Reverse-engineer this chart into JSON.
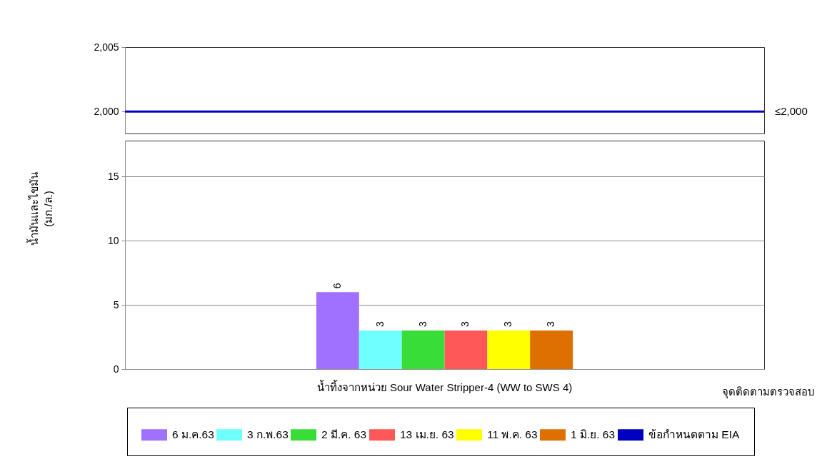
{
  "chart_data": [
    {
      "type": "bar",
      "categories": [
        null
      ],
      "ylim": [
        1998.3,
        2005
      ],
      "yticks": [
        {
          "value": 2000,
          "label": "2,000"
        },
        {
          "value": 2005,
          "label": "2,005"
        }
      ],
      "tick_labels": "y",
      "ref_lines": [
        {
          "axis": "y",
          "value": 2000,
          "label": "ข้อกำหนดตาม EIA",
          "color": "#0000c0"
        }
      ],
      "annotations": [
        "≤2,000"
      ]
    },
    {
      "type": "bar",
      "categories": [
        "น้ำทิ้งจากหน่วย Sour Water Stripper-4 (WW to SWS 4)"
      ],
      "series": [
        {
          "name": "6 ม.ค.63",
          "color": "#a070ff",
          "values": [
            6
          ]
        },
        {
          "name": "3 ก.พ.63",
          "color": "#70ffff",
          "values": [
            3
          ]
        },
        {
          "name": "2 มี.ค. 63",
          "color": "#38dd38",
          "values": [
            3
          ]
        },
        {
          "name": "13 เม.ย. 63",
          "color": "#ff5858",
          "values": [
            3
          ]
        },
        {
          "name": "11 พ.ค. 63",
          "color": "#ffff00",
          "values": [
            3
          ]
        },
        {
          "name": "1 มิ.ย. 63",
          "color": "#dd7000",
          "values": [
            3
          ]
        }
      ],
      "ylim": [
        0,
        17.8
      ],
      "yticks": [
        0,
        5,
        10,
        15
      ],
      "grid": "y",
      "xlabel": "จุดติดตามตรวจสอบ",
      "ylabel": "น้ำมันและไขมัน\n(มก./ล.)",
      "data_labels": true,
      "legend": "bottom"
    }
  ]
}
